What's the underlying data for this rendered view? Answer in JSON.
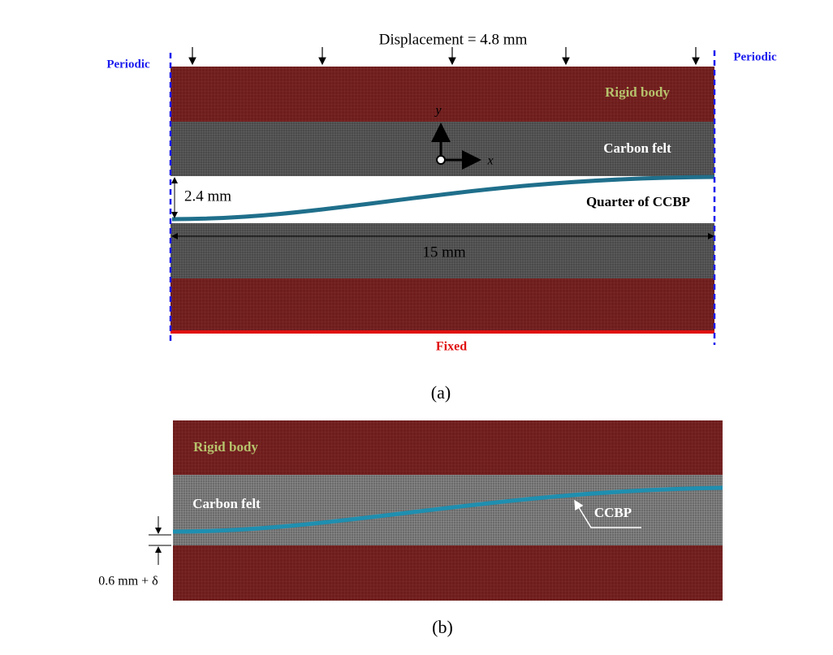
{
  "panel_a": {
    "displacement_label": "Displacement = 4.8 mm",
    "periodic_left": "Periodic",
    "periodic_right": "Periodic",
    "rigid_body": "Rigid body",
    "carbon_felt": "Carbon felt",
    "axis_y": "y",
    "axis_x": "x",
    "ccbp_label": "Quarter of CCBP",
    "gap_label": "2.4 mm",
    "width_label": "15 mm",
    "fixed_label": "Fixed",
    "caption": "(a)"
  },
  "panel_b": {
    "rigid_body": "Rigid body",
    "carbon_felt": "Carbon felt",
    "ccbp_label": "CCBP",
    "gap_label": "0.6 mm + δ",
    "caption": "(b)"
  }
}
